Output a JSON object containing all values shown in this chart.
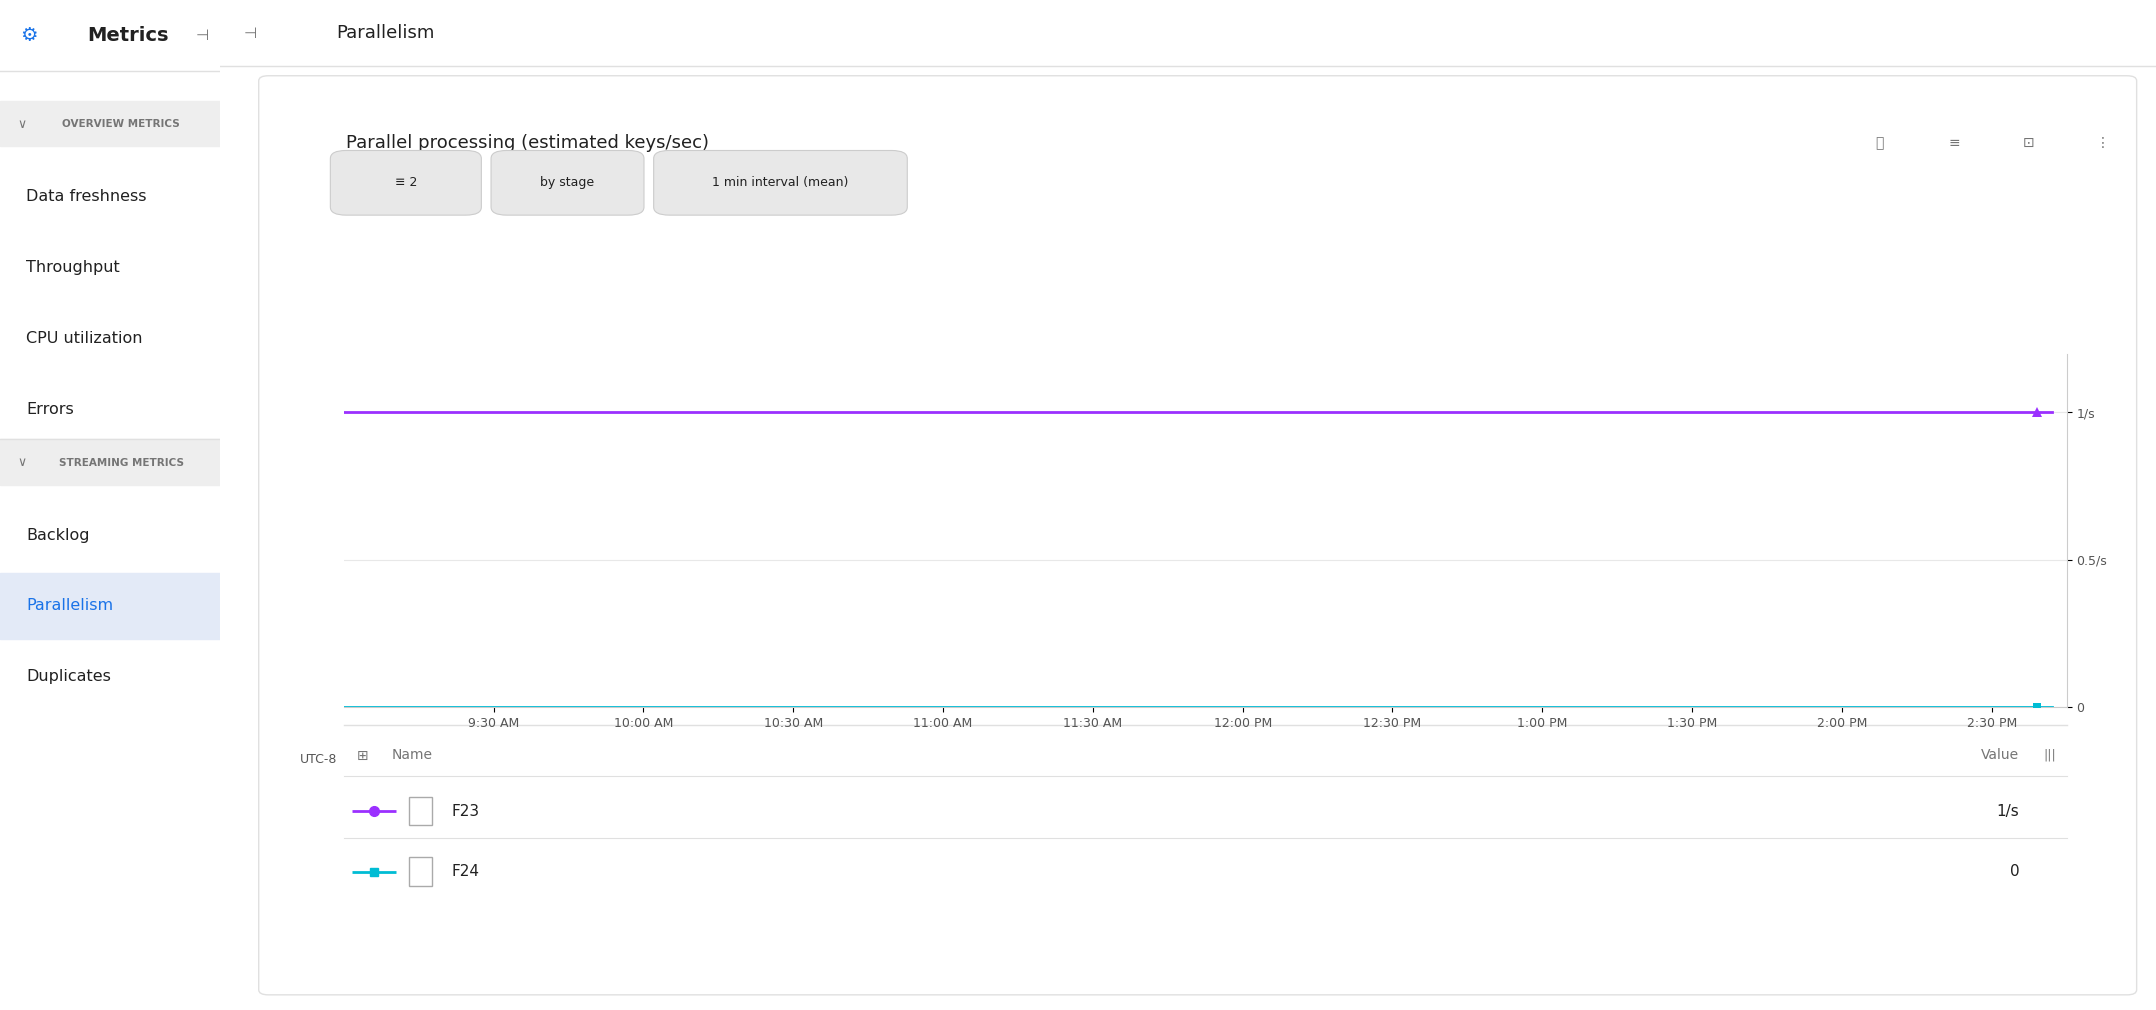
{
  "page_title": "Parallelism",
  "chart_title": "Parallel processing (estimated keys/sec)",
  "sidebar_title": "Metrics",
  "sidebar_section1": "OVERVIEW METRICS",
  "sidebar_items1": [
    "Data freshness",
    "Throughput",
    "CPU utilization",
    "Errors"
  ],
  "sidebar_section2": "STREAMING METRICS",
  "sidebar_items2": [
    "Backlog",
    "Parallelism",
    "Duplicates"
  ],
  "active_item": "Parallelism",
  "filter_buttons": [
    "≡ 2",
    "by stage",
    "1 min interval (mean)"
  ],
  "time_labels": [
    "UTC-8",
    "9:30 AM",
    "10:00 AM",
    "10:30 AM",
    "11:00 AM",
    "11:30 AM",
    "12:00 PM",
    "12:30 PM",
    "1:00 PM",
    "1:30 PM",
    "2:00 PM",
    "2:30 PM"
  ],
  "y_labels_right": [
    "1/s",
    "0.5/s",
    "0"
  ],
  "line1_color": "#9b30ff",
  "line1_value": 1.0,
  "line2_color": "#00bcd4",
  "line2_value": 0.0,
  "series": [
    {
      "name": "F23",
      "color": "#9b30ff",
      "value": "1/s",
      "marker": "triangle"
    },
    {
      "name": "F24",
      "color": "#00bcd4",
      "value": "0",
      "marker": "square"
    }
  ],
  "bg_color": "#ffffff",
  "sidebar_bg": "#f5f5f5",
  "sidebar_active_bg": "#e3eaf7",
  "panel_bg": "#ffffff",
  "border_color": "#e0e0e0",
  "text_color": "#212121",
  "subtext_color": "#757575",
  "header_bg": "#ffffff"
}
